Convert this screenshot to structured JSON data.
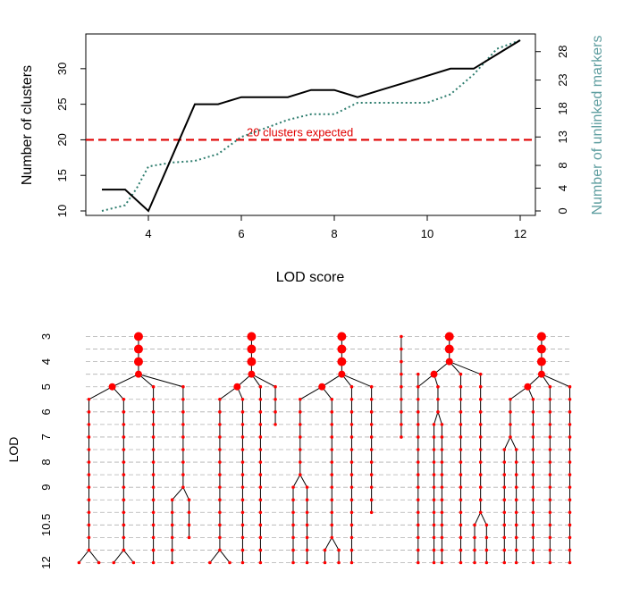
{
  "chart_data": [
    {
      "type": "line",
      "xlabel": "LOD score",
      "ylabel": "Number of clusters",
      "y2label": "Number of unlinked markers",
      "colors": {
        "clusters": "#000000",
        "unlinked": "#2e7d6e",
        "expected": "#e00000",
        "y2label": "#5f9ea0"
      },
      "xlim": [
        3,
        12
      ],
      "ylim": [
        10,
        34
      ],
      "y2lim": [
        0,
        30
      ],
      "xticks": [
        "4",
        "6",
        "8",
        "10",
        "12"
      ],
      "yticks": [
        "10",
        "15",
        "20",
        "25",
        "30"
      ],
      "y2ticks": [
        "0",
        "4",
        "8",
        "13",
        "18",
        "23",
        "28"
      ],
      "reference_line": {
        "y": 20,
        "label": "20 clusters expected"
      },
      "series": [
        {
          "key": "clusters",
          "x": [
            3,
            3.5,
            4,
            4.5,
            5,
            5.5,
            6,
            6.5,
            7,
            7.5,
            8,
            8.5,
            9,
            9.5,
            10,
            10.5,
            11,
            11.5,
            12
          ],
          "y": [
            13,
            13,
            10,
            17.5,
            25,
            25,
            26,
            26,
            26,
            27,
            27,
            26,
            27,
            28,
            29,
            30,
            30,
            32,
            34
          ]
        },
        {
          "key": "unlinked",
          "x": [
            3,
            3.5,
            3.75,
            4,
            4.5,
            5,
            5.5,
            6,
            6.5,
            7,
            7.5,
            8,
            8.5,
            9,
            9.5,
            10,
            10.5,
            11,
            11.5,
            12
          ],
          "y": [
            0,
            1,
            4,
            7.8,
            8.5,
            8.8,
            10,
            13,
            14.5,
            16,
            17,
            17,
            19,
            19,
            19,
            19,
            20.5,
            24,
            28.5,
            30
          ]
        }
      ]
    },
    {
      "type": "tree",
      "ylabel": "LOD",
      "yticks": [
        "3",
        "4",
        "5",
        "6",
        "7",
        "8",
        "9",
        "10.5",
        "12"
      ],
      "colors": {
        "node": "#ff0000",
        "edge": "#000000",
        "grid": "#b0b0b0"
      },
      "levels": 19,
      "trees": [
        {
          "split": 3,
          "leaves": [
            {
              "x": 0,
              "split": 17,
              "left": -1,
              "right": 1
            },
            {
              "x": 3.5,
              "split": 17,
              "left": -1,
              "right": 1
            },
            {
              "x": 6.5
            },
            {
              "x": 9.5,
              "split": 12,
              "left": -1.1,
              "right": 0.6,
              "rightEnd": 16
            }
          ]
        },
        {
          "split": 3,
          "leaves": [
            {
              "x": 13.2,
              "split": 17,
              "left": -1,
              "right": 1
            },
            {
              "x": 15.5
            },
            {
              "x": 17.3
            },
            {
              "x": 18.8,
              "end": 7
            }
          ]
        },
        {
          "split": 3,
          "leaves": [
            {
              "x": 21.3,
              "split": 11,
              "left": -0.7,
              "right": 0.7
            },
            {
              "x": 24.5,
              "split": 16,
              "left": -0.7,
              "right": 0.7
            },
            {
              "x": 26.5
            },
            {
              "x": 28.5,
              "end": 14
            }
          ]
        },
        {
          "single": true,
          "x": 31.5,
          "end": 8
        },
        {
          "split": 2,
          "leaves": [
            {
              "x": 33.2,
              "start": 3
            },
            {
              "x": 35.2,
              "split": 6,
              "left": -0.4,
              "right": 0.4
            },
            {
              "x": 37.5
            },
            {
              "x": 39.5,
              "split": 14,
              "left": -0.6,
              "right": 0.6
            }
          ]
        },
        {
          "split": 3,
          "leaves": [
            {
              "x": 42.5,
              "split": 8,
              "left": -0.6,
              "right": 0.6
            },
            {
              "x": 44.8
            },
            {
              "x": 46.5
            },
            {
              "x": 48.5
            }
          ]
        }
      ]
    }
  ]
}
